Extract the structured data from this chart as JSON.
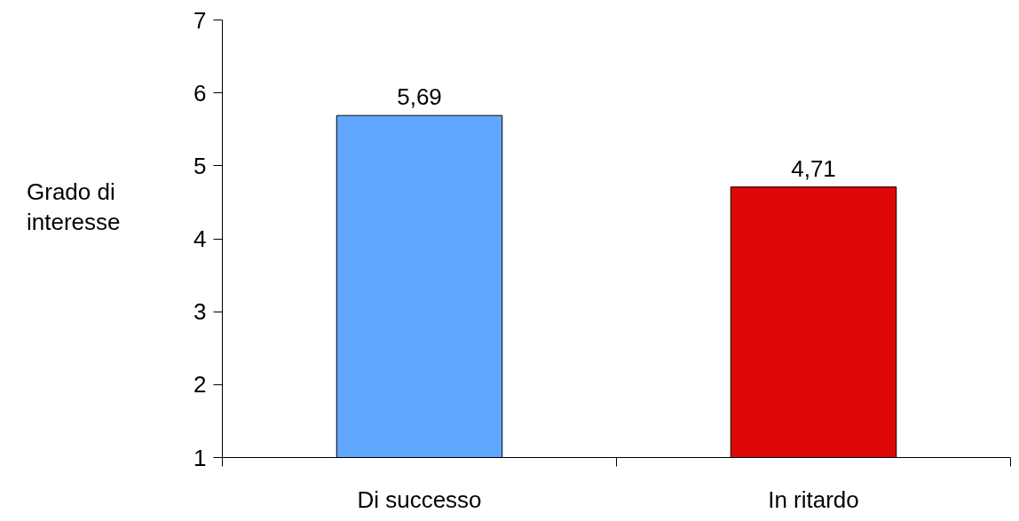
{
  "chart_data": {
    "type": "bar",
    "ylabel": "Grado di\ninteresse",
    "categories": [
      "Di successo",
      "In ritardo"
    ],
    "values": [
      5.69,
      4.71
    ],
    "colors": [
      "#61a6ff",
      "#dd0806"
    ],
    "value_labels": [
      "5,69",
      "4,71"
    ],
    "ylim": [
      1,
      7
    ],
    "yticks": [
      1,
      2,
      3,
      4,
      5,
      6,
      7
    ],
    "grid": false
  }
}
